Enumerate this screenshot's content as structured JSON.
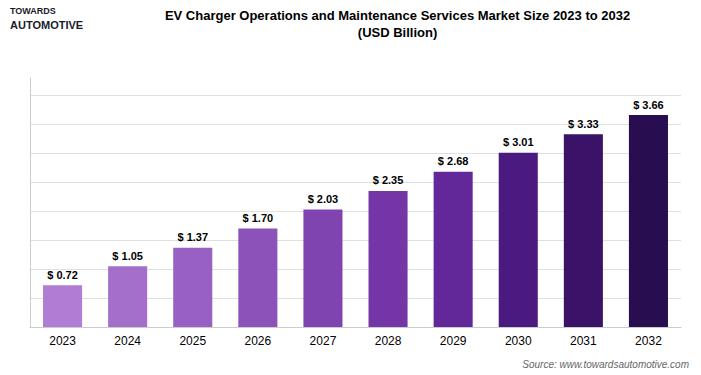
{
  "chart_data": {
    "type": "bar",
    "title": "EV Charger Operations and Maintenance Services Market Size 2023 to 2032",
    "subtitle": "(USD Billion)",
    "annotations": [
      "TOWARDS",
      "AUTOMOTIVE",
      "Source: www.towardsautomotive.com"
    ],
    "categories": [
      "2023",
      "2024",
      "2025",
      "2026",
      "2027",
      "2028",
      "2029",
      "2030",
      "2031",
      "2032"
    ],
    "values": [
      0.72,
      1.05,
      1.37,
      1.7,
      2.03,
      2.35,
      2.68,
      3.01,
      3.33,
      3.66
    ],
    "value_labels": [
      "$ 0.72",
      "$ 1.05",
      "$ 1.37",
      "$ 1.70",
      "$ 2.03",
      "$ 2.35",
      "$ 2.68",
      "$ 3.01",
      "$ 3.33",
      "$ 3.66"
    ],
    "data_labels": true,
    "colors": [
      "#b07cd4",
      "#a46ecb",
      "#9860c2",
      "#8c52b9",
      "#8044b0",
      "#7436a7",
      "#62289a",
      "#4a1a80",
      "#3a1268",
      "#280e50"
    ],
    "ylim": [
      0,
      4.3
    ],
    "yticks": [
      0,
      0.5,
      1.0,
      1.5,
      2.0,
      2.5,
      3.0,
      3.5,
      4.0
    ],
    "grid": true,
    "tick_labels": "x"
  }
}
